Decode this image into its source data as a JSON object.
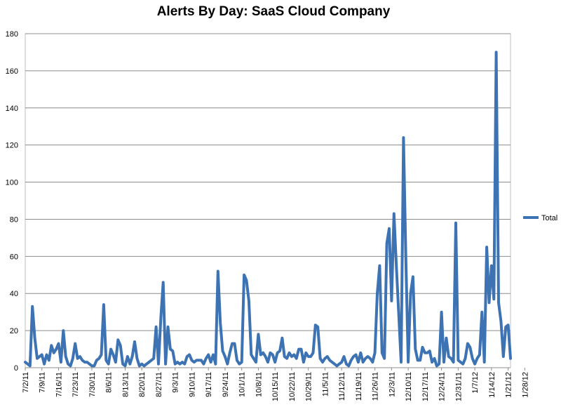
{
  "chart_data": {
    "type": "line",
    "title": "Alerts By Day:  SaaS Cloud Company",
    "xlabel": "",
    "ylabel": "",
    "ylim": [
      0,
      180
    ],
    "yticks": [
      0,
      20,
      40,
      60,
      80,
      100,
      120,
      140,
      160,
      180
    ],
    "grid": true,
    "legend_position": "right",
    "x_tick_labels": [
      "7/2/11",
      "7/9/11",
      "7/16/11",
      "7/23/11",
      "7/30/11",
      "8/6/11",
      "8/13/11",
      "8/20/11",
      "8/27/11",
      "9/3/11",
      "9/10/11",
      "9/17/11",
      "9/24/11",
      "10/1/11",
      "10/8/11",
      "10/15/11",
      "10/22/11",
      "10/29/11",
      "11/5/11",
      "11/12/11",
      "11/19/11",
      "11/26/11",
      "12/3/11",
      "12/10/11",
      "12/17/11",
      "12/24/11",
      "12/31/11",
      "1/7/12",
      "1/14/12",
      "1/21/12",
      "1/28/12"
    ],
    "x_start": "7/2/11",
    "x_end": "2/1/12",
    "series": [
      {
        "name": "Total",
        "color": "#3d73b3",
        "values": [
          3,
          2,
          1,
          33,
          16,
          5,
          6,
          7,
          2,
          7,
          4,
          12,
          8,
          10,
          13,
          3,
          20,
          6,
          2,
          1,
          5,
          13,
          5,
          6,
          4,
          3,
          3,
          2,
          1,
          1,
          4,
          5,
          7,
          34,
          4,
          2,
          10,
          7,
          3,
          15,
          12,
          2,
          1,
          6,
          2,
          6,
          14,
          5,
          1,
          2,
          1,
          2,
          3,
          4,
          5,
          22,
          2,
          27,
          46,
          2,
          22,
          10,
          9,
          2,
          3,
          2,
          3,
          2,
          6,
          7,
          4,
          3,
          4,
          4,
          4,
          2,
          5,
          7,
          3,
          7,
          2,
          52,
          24,
          9,
          6,
          2,
          8,
          13,
          13,
          4,
          2,
          3,
          50,
          47,
          36,
          7,
          5,
          3,
          18,
          7,
          8,
          6,
          3,
          8,
          7,
          3,
          8,
          9,
          16,
          6,
          5,
          8,
          6,
          7,
          5,
          10,
          10,
          3,
          8,
          6,
          6,
          8,
          23,
          22,
          5,
          3,
          5,
          6,
          4,
          3,
          2,
          1,
          2,
          3,
          6,
          2,
          1,
          4,
          6,
          7,
          3,
          8,
          3,
          5,
          6,
          5,
          3,
          8,
          40,
          55,
          8,
          5,
          67,
          75,
          36,
          83,
          55,
          29,
          3,
          124,
          60,
          3,
          40,
          49,
          10,
          4,
          4,
          11,
          8,
          8,
          9,
          3,
          5,
          1,
          2,
          30,
          3,
          16,
          6,
          5,
          3,
          78,
          4,
          3,
          2,
          5,
          13,
          11,
          5,
          2,
          5,
          7,
          30,
          3,
          65,
          35,
          55,
          37,
          170,
          35,
          25,
          6,
          22,
          23,
          5
        ]
      }
    ]
  }
}
